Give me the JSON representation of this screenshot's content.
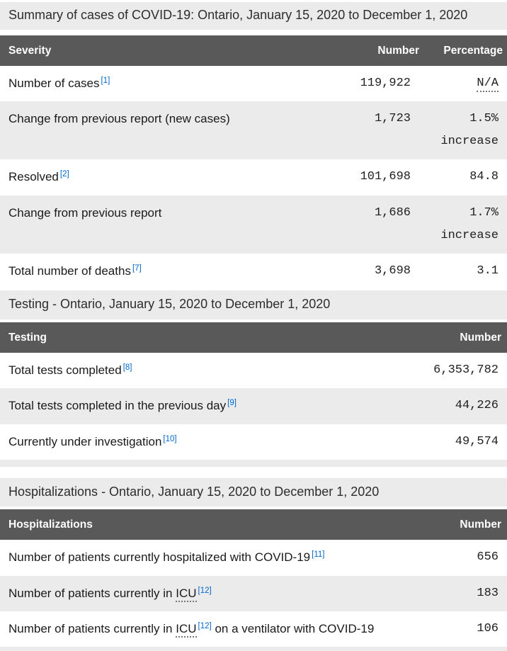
{
  "page": {
    "title": "Summary of cases of COVID-19: Ontario, January 15, 2020 to December 1, 2020"
  },
  "colors": {
    "header_bg": "#595959",
    "header_text": "#ffffff",
    "stripe_bg": "#ebebeb",
    "link_blue": "#0066cc",
    "body_text": "#1a1a1a"
  },
  "summary_table": {
    "headers": [
      "Severity",
      "Number",
      "Percentage"
    ],
    "rows": [
      {
        "label": "Number of cases",
        "footnote": "[1]",
        "number": "119,922",
        "percentage": "N/A"
      },
      {
        "label": "Change from previous report (new cases)",
        "number": "1,723",
        "percentage": "1.5%",
        "percentage_note": "increase"
      },
      {
        "label": "Resolved",
        "footnote": "[2]",
        "number": "101,698",
        "percentage": "84.8"
      },
      {
        "label": "Change from previous report",
        "number": "1,686",
        "percentage": "1.7%",
        "percentage_note": "increase"
      },
      {
        "label": "Total number of deaths",
        "footnote": "[7]",
        "number": "3,698",
        "percentage": "3.1"
      }
    ]
  },
  "testing_table": {
    "caption": "Testing - Ontario, January 15, 2020 to December 1, 2020",
    "headers": [
      "Testing",
      "Number"
    ],
    "rows": [
      {
        "label": "Total tests completed",
        "footnote": "[8]",
        "number": "6,353,782"
      },
      {
        "label": "Total tests completed in the previous day",
        "footnote": "[9]",
        "number": "44,226"
      },
      {
        "label": "Currently under investigation",
        "footnote": "[10]",
        "number": "49,574"
      }
    ]
  },
  "hospitalizations_table": {
    "caption": "Hospitalizations - Ontario, January 15, 2020 to December 1, 2020",
    "headers": [
      "Hospitalizations",
      "Number"
    ],
    "rows": [
      {
        "label": "Number of patients currently hospitalized with COVID-19",
        "footnote": "[11]",
        "number": "656"
      },
      {
        "label": "Number of patients currently in",
        "abbr": "ICU",
        "footnote": "[12]",
        "number": "183"
      },
      {
        "label": "Number of patients currently in",
        "abbr": "ICU",
        "footnote": "[12]",
        "label_after": "on a ventilator with COVID-19",
        "number": "106"
      }
    ]
  }
}
